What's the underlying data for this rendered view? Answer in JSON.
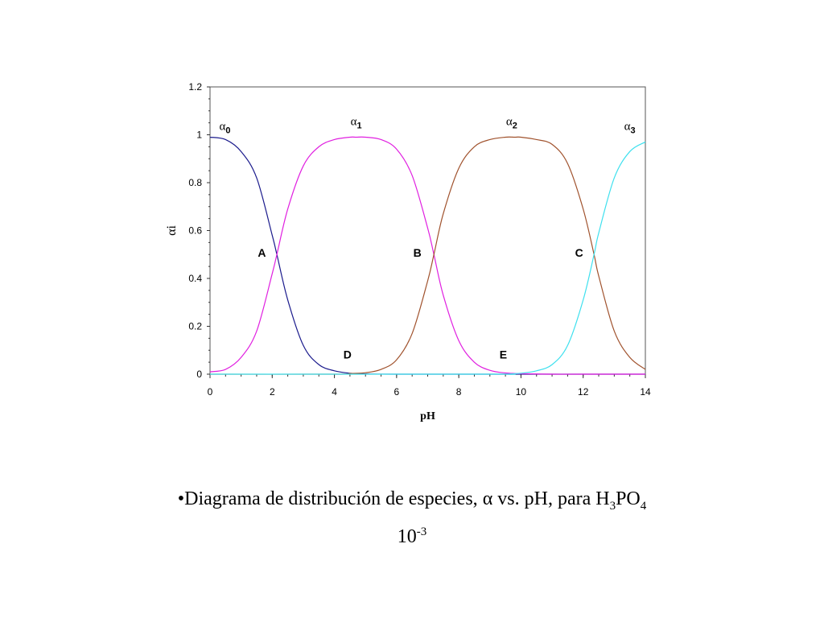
{
  "chart_data": {
    "type": "line",
    "title": "",
    "xlabel": "pH",
    "ylabel": "αi",
    "xlim": [
      0,
      14
    ],
    "ylim": [
      0,
      1.2
    ],
    "x_ticks": [
      0,
      2,
      4,
      6,
      8,
      10,
      12,
      14
    ],
    "y_ticks": [
      0,
      0.2,
      0.4,
      0.6,
      0.8,
      1,
      1.2
    ],
    "x_tick_labels": [
      "0",
      "2",
      "4",
      "6",
      "8",
      "10",
      "12",
      "14"
    ],
    "y_tick_labels": [
      "0",
      "0.2",
      "0.4",
      "0.6",
      "0.8",
      "1",
      "1.2"
    ],
    "grid": false,
    "pKa": [
      2.15,
      7.2,
      12.35
    ],
    "series": [
      {
        "name": "α0",
        "color": "#1a1a8c",
        "label_x": 0.48,
        "label_y": 1.02,
        "x": [
          0,
          0.5,
          1,
          1.5,
          2,
          2.15,
          2.5,
          3,
          3.5,
          4,
          4.5,
          5,
          6,
          8,
          10,
          12,
          14
        ],
        "y": [
          0.99,
          0.98,
          0.93,
          0.82,
          0.58,
          0.5,
          0.31,
          0.12,
          0.04,
          0.014,
          0.004,
          0.001,
          0,
          0,
          0,
          0,
          0
        ]
      },
      {
        "name": "α1",
        "color": "#e020e0",
        "label_x": 4.7,
        "label_y": 1.04,
        "x": [
          0,
          0.5,
          1,
          1.5,
          2,
          2.15,
          2.5,
          3,
          3.5,
          4,
          4.5,
          4.7,
          5,
          5.5,
          6,
          6.5,
          7,
          7.2,
          7.5,
          8,
          8.5,
          9,
          9.5,
          10,
          11,
          12,
          14
        ],
        "y": [
          0.01,
          0.02,
          0.07,
          0.18,
          0.42,
          0.5,
          0.69,
          0.87,
          0.95,
          0.98,
          0.99,
          0.99,
          0.99,
          0.98,
          0.94,
          0.83,
          0.61,
          0.5,
          0.33,
          0.14,
          0.05,
          0.016,
          0.005,
          0.002,
          0,
          0,
          0
        ]
      },
      {
        "name": "α2",
        "color": "#a0522d",
        "label_x": 9.7,
        "label_y": 1.04,
        "x": [
          0,
          4,
          4.5,
          5,
          5.5,
          6,
          6.5,
          7,
          7.2,
          7.5,
          8,
          8.5,
          9,
          9.5,
          9.8,
          10,
          10.5,
          11,
          11.5,
          12,
          12.35,
          12.5,
          13,
          13.5,
          14
        ],
        "y": [
          0,
          0,
          0.003,
          0.006,
          0.02,
          0.06,
          0.17,
          0.39,
          0.5,
          0.67,
          0.86,
          0.95,
          0.98,
          0.99,
          0.99,
          0.99,
          0.98,
          0.96,
          0.88,
          0.69,
          0.5,
          0.41,
          0.18,
          0.07,
          0.02
        ]
      },
      {
        "name": "α3",
        "color": "#3ee0ee",
        "label_x": 13.5,
        "label_y": 1.02,
        "x": [
          0,
          9,
          9.5,
          10,
          10.5,
          11,
          11.5,
          12,
          12.35,
          12.5,
          13,
          13.5,
          14
        ],
        "y": [
          0,
          0,
          0,
          0.004,
          0.014,
          0.04,
          0.12,
          0.31,
          0.5,
          0.59,
          0.82,
          0.93,
          0.97
        ]
      }
    ],
    "annotations": [
      {
        "text": "A",
        "x": 1.8,
        "y": 0.49
      },
      {
        "text": "B",
        "x": 6.8,
        "y": 0.49
      },
      {
        "text": "C",
        "x": 12.0,
        "y": 0.49
      },
      {
        "text": "D",
        "x": 4.55,
        "y": 0.065
      },
      {
        "text": "E",
        "x": 9.55,
        "y": 0.065
      }
    ]
  },
  "caption": {
    "bullet": "•",
    "text_before": "Diagrama de distribución de especies, ",
    "alpha": "α",
    "text_mid": " vs. pH, para H",
    "sub_3": "3",
    "po": "PO",
    "sub_4": "4",
    "line2_base": "10",
    "line2_sup": "-3"
  }
}
